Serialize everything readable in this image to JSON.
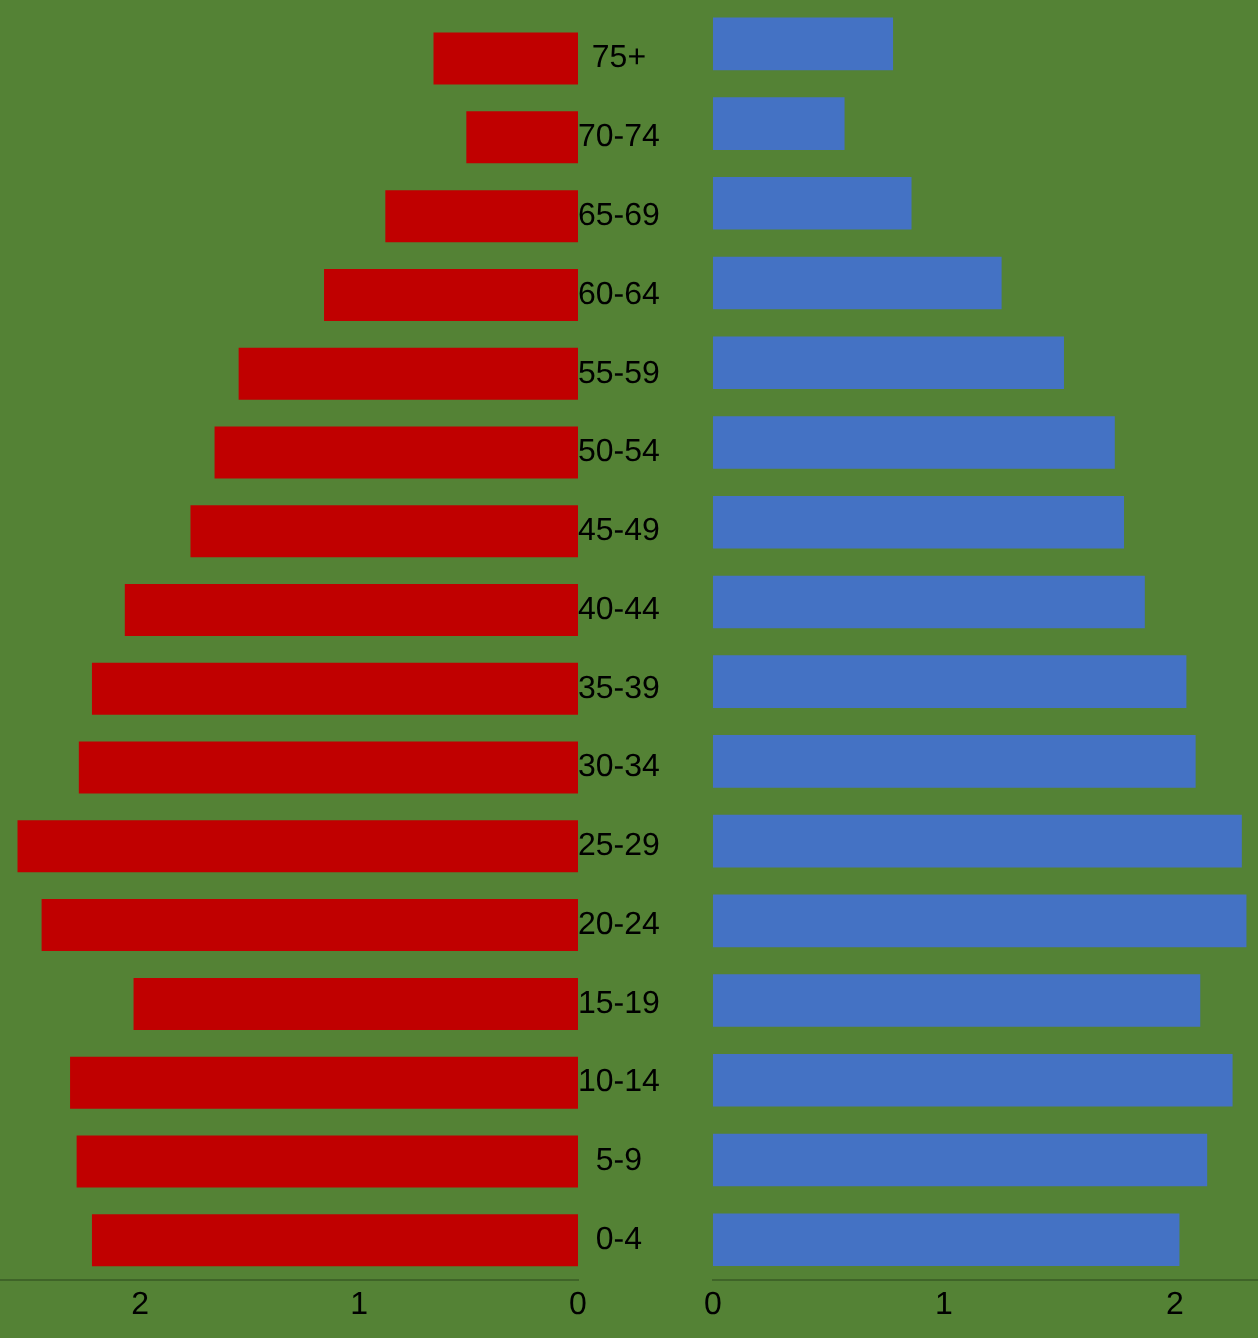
{
  "chart_data": [
    {
      "type": "bar",
      "orientation": "horizontal",
      "categories": [
        "75+",
        "70-74",
        "65-69",
        "60-64",
        "55-59",
        "50-54",
        "45-49",
        "40-44",
        "35-39",
        "30-34",
        "25-29",
        "20-24",
        "15-19",
        "10-14",
        "5-9",
        "0-4"
      ],
      "series": [
        {
          "color": "#c00000",
          "values": [
            0.66,
            0.51,
            0.88,
            1.16,
            1.55,
            1.66,
            1.77,
            2.07,
            2.22,
            2.28,
            2.56,
            2.45,
            2.03,
            2.32,
            2.29,
            2.22
          ]
        }
      ],
      "xlim": [
        2.64,
        0
      ],
      "xticks": [
        2,
        1,
        0
      ]
    },
    {
      "type": "bar",
      "orientation": "horizontal",
      "categories": [
        null,
        null,
        null,
        null,
        null,
        null,
        null,
        null,
        null,
        null,
        null,
        null,
        null,
        null,
        null,
        null
      ],
      "series": [
        {
          "color": "#4472c4",
          "values": [
            0.78,
            0.57,
            0.86,
            1.25,
            1.52,
            1.74,
            1.78,
            1.87,
            2.05,
            2.09,
            2.29,
            2.31,
            2.11,
            2.25,
            2.14,
            2.02
          ]
        }
      ],
      "xlim": [
        0,
        2.36
      ],
      "xticks": [
        0,
        1,
        2
      ],
      "tick_labels": "x"
    }
  ]
}
